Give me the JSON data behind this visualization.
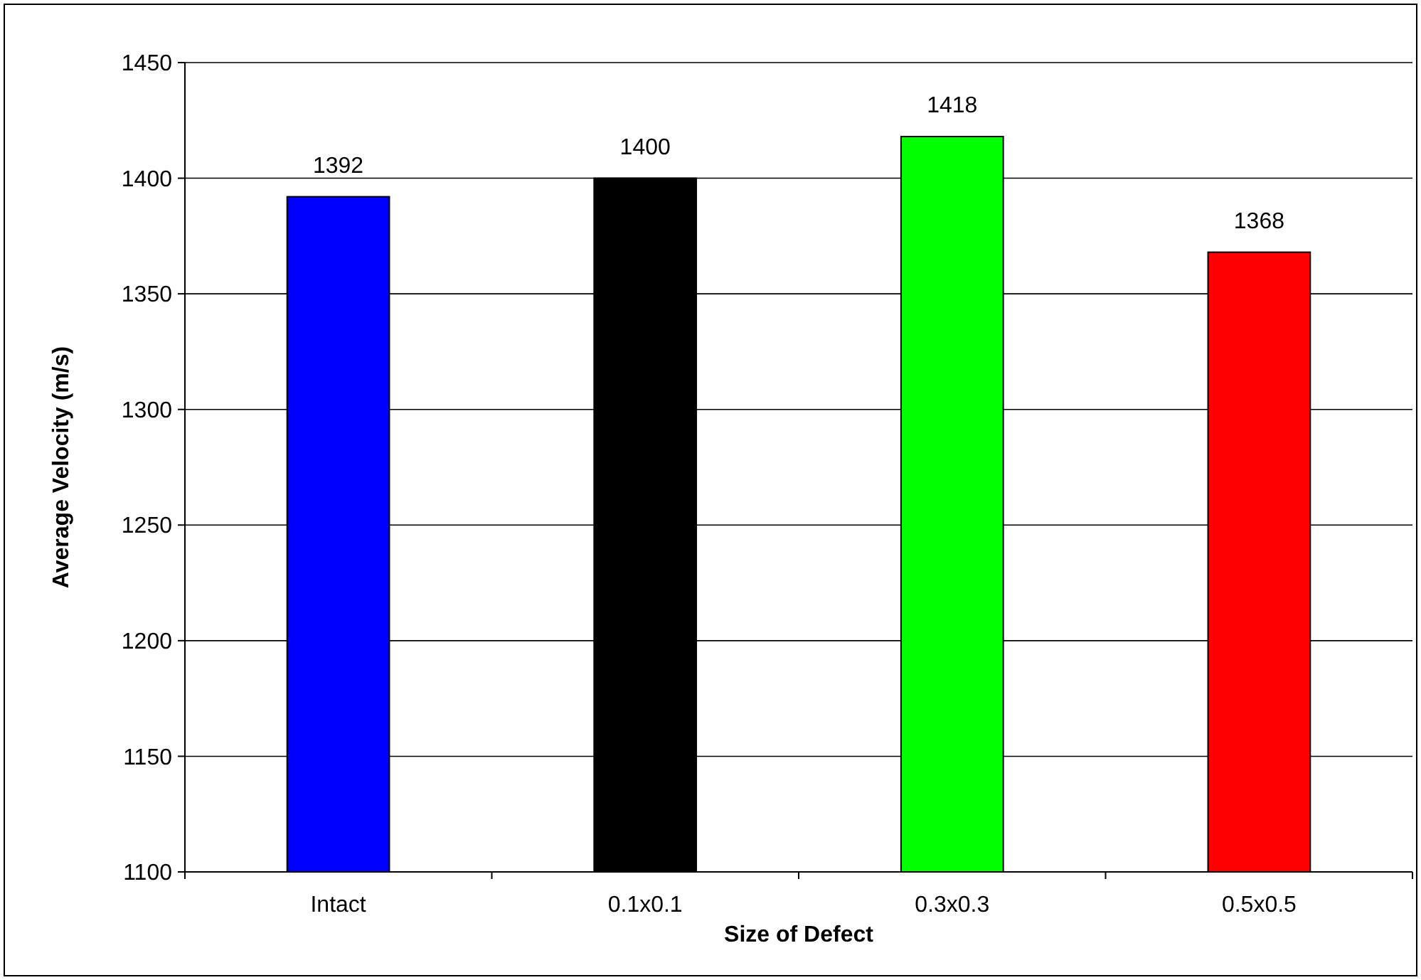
{
  "chart_data": {
    "type": "bar",
    "xlabel": "Size of Defect",
    "ylabel": "Average Velocity (m/s)",
    "categories": [
      "Intact",
      "0.1x0.1",
      "0.3x0.3",
      "0.5x0.5"
    ],
    "values": [
      1392,
      1400,
      1418,
      1368
    ],
    "colors": [
      "#0000ff",
      "#000000",
      "#00ff00",
      "#ff0000"
    ],
    "ylim": [
      1100,
      1450
    ],
    "yticks": [
      1100,
      1150,
      1200,
      1250,
      1300,
      1350,
      1400,
      1450
    ],
    "grid": "y",
    "data_labels": true
  }
}
